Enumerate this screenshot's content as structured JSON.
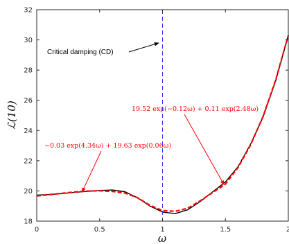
{
  "chart_data": {
    "type": "line",
    "title": "",
    "xlabel": "ω",
    "ylabel": "ℒ(10)",
    "xlim": [
      0,
      2
    ],
    "ylim": [
      18,
      32
    ],
    "xticks": [
      "0",
      "0.5",
      "1",
      "1.5",
      "2"
    ],
    "yticks": [
      "18",
      "20",
      "22",
      "24",
      "26",
      "28",
      "30",
      "32"
    ],
    "grid": false,
    "series": [
      {
        "style": "solid",
        "color": "#000000",
        "x": [
          0,
          0.1,
          0.2,
          0.3,
          0.4,
          0.5,
          0.6,
          0.7,
          0.8,
          0.9,
          1.0,
          1.1,
          1.2,
          1.3,
          1.4,
          1.5,
          1.6,
          1.7,
          1.8,
          1.9,
          2.0
        ],
        "y": [
          19.72,
          19.76,
          19.82,
          19.9,
          19.97,
          20.03,
          20.06,
          19.95,
          19.55,
          19.0,
          18.6,
          18.5,
          18.75,
          19.3,
          19.95,
          20.6,
          21.6,
          23.1,
          24.9,
          27.3,
          30.3
        ]
      },
      {
        "style": "dashed",
        "color": "#ff0000",
        "x": [
          0,
          0.1,
          0.2,
          0.3,
          0.4,
          0.5,
          0.6,
          0.7,
          0.8,
          0.9,
          1.0,
          1.1,
          1.2,
          1.3,
          1.4,
          1.5,
          1.6,
          1.7,
          1.8,
          1.9,
          2.0
        ],
        "y": [
          19.67,
          19.75,
          19.84,
          19.93,
          19.99,
          20.01,
          19.97,
          19.86,
          19.55,
          19.05,
          18.7,
          18.65,
          18.85,
          19.35,
          19.9,
          20.45,
          21.55,
          23.05,
          24.95,
          27.35,
          30.3
        ]
      }
    ],
    "vline": {
      "x": 1,
      "color": "#3333ff",
      "style": "dashed"
    },
    "annotations": [
      {
        "text": "Critical damping (CD)",
        "color": "#000000",
        "arrow_to": [
          0.97,
          29.8
        ]
      },
      {
        "text": "19.52 exp(−0.12ω) + 0.11 exp(2.48ω)",
        "color": "#ff0000",
        "arrow_to": [
          1.49,
          20.4
        ]
      },
      {
        "text": "−0.03 exp(4.34ω) + 19.63 exp(0.06ω)",
        "color": "#ff0000",
        "arrow_to": [
          0.36,
          19.92
        ]
      }
    ]
  }
}
